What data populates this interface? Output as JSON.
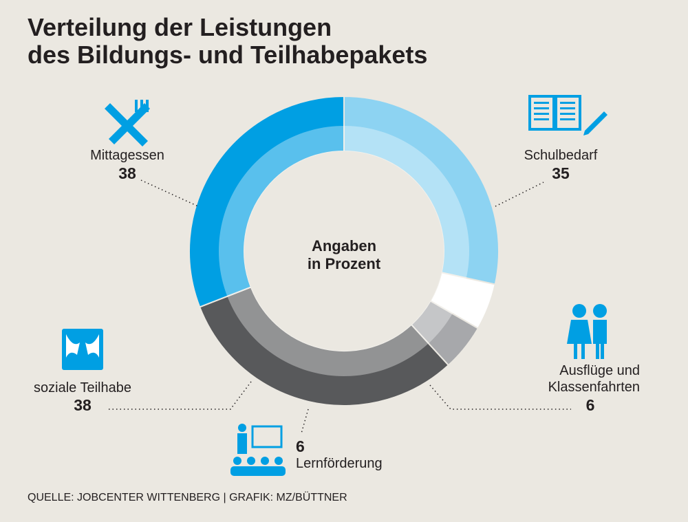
{
  "chart_data": {
    "type": "pie",
    "title": "Verteilung der Leistungen\ndes Bildungs- und Teilhabepakets",
    "center_label": "Angaben\nin Prozent",
    "categories": [
      "Schulbedarf",
      "Ausflüge und\nKlassenfahrten",
      "Lernförderung",
      "soziale Teilhabe",
      "Mittagessen"
    ],
    "values": [
      35,
      6,
      6,
      38,
      38
    ],
    "colors": [
      "#8dd3f2",
      "#ffffff",
      "#a7a8ab",
      "#58595b",
      "#009fe3"
    ],
    "source": "QUELLE: JOBCENTER WITTENBERG | GRAFIK: MZ/BÜTTNER"
  }
}
